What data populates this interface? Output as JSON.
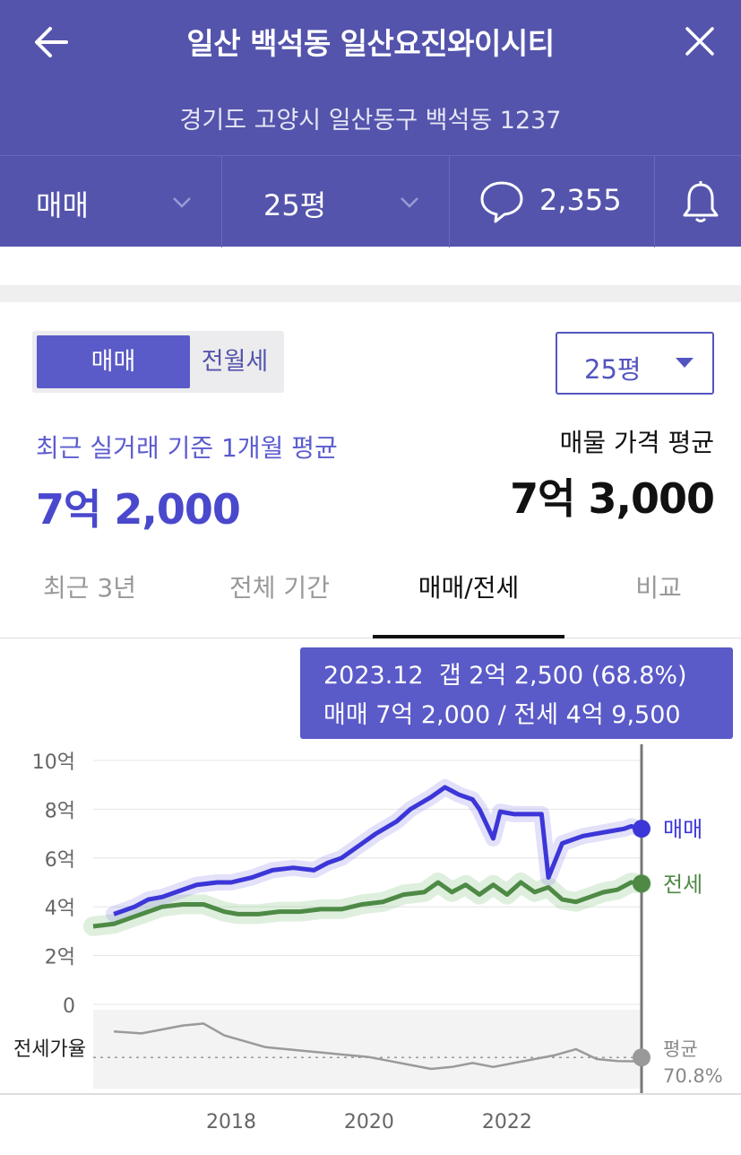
{
  "header": {
    "title": "일산 백석동 일산요진와이시티",
    "address": "경기도 고양시 일산동구 백석동 1237",
    "trade_type": "매매",
    "size": "25평",
    "comment_count": "2,355"
  },
  "segment": {
    "active": "매매",
    "inactive": "전월세"
  },
  "size_select": {
    "value": "25평"
  },
  "summary": {
    "recent_label": "최근 실거래 기준 1개월 평균",
    "recent_value": "7억 2,000",
    "listing_label": "매물 가격 평균",
    "listing_value": "7억 3,000"
  },
  "tabs": [
    {
      "label": "최근 3년",
      "active": false
    },
    {
      "label": "전체 기간",
      "active": false
    },
    {
      "label": "매매/전세",
      "active": true
    },
    {
      "label": "비교",
      "active": false
    }
  ],
  "tooltip": {
    "line1": "2023.12  갭 2억 2,500 (68.8%)",
    "line2": "매매 7억 2,000 / 전세 4억 9,500"
  },
  "colors": {
    "header_bg": "#5454ac",
    "accent": "#5a5ac8",
    "sale_line": "#3c36d8",
    "jeonse_line": "#4e8a46",
    "ratio_line": "#9a9a9a"
  },
  "chart_data": {
    "type": "line",
    "x_ticks": [
      "2018",
      "2020",
      "2022"
    ],
    "y_ticks": [
      "10억",
      "8억",
      "6억",
      "4억",
      "2억",
      "0"
    ],
    "ylim": [
      0,
      10
    ],
    "y_unit": "억",
    "series": [
      {
        "name": "매매",
        "x": [
          2016.3,
          2016.6,
          2016.8,
          2017.0,
          2017.2,
          2017.5,
          2017.8,
          2018.0,
          2018.3,
          2018.6,
          2018.9,
          2019.2,
          2019.4,
          2019.6,
          2019.9,
          2020.1,
          2020.4,
          2020.6,
          2020.9,
          2021.1,
          2021.3,
          2021.5,
          2021.6,
          2021.8,
          2021.9,
          2022.1,
          2022.3,
          2022.5,
          2022.6,
          2022.8,
          2022.9,
          2023.1,
          2023.3,
          2023.5,
          2023.7,
          2023.8,
          2023.95
        ],
        "values": [
          3.7,
          4.0,
          4.3,
          4.4,
          4.6,
          4.9,
          5.0,
          5.0,
          5.2,
          5.5,
          5.6,
          5.5,
          5.8,
          6.0,
          6.6,
          7.0,
          7.5,
          8.0,
          8.5,
          8.9,
          8.6,
          8.4,
          8.0,
          6.8,
          7.9,
          7.8,
          7.8,
          7.8,
          5.2,
          6.6,
          6.7,
          6.9,
          7.0,
          7.1,
          7.2,
          7.3,
          7.2
        ]
      },
      {
        "name": "전세",
        "x": [
          2016.0,
          2016.3,
          2016.6,
          2016.8,
          2017.0,
          2017.3,
          2017.6,
          2017.9,
          2018.1,
          2018.4,
          2018.7,
          2019.0,
          2019.3,
          2019.6,
          2019.9,
          2020.2,
          2020.5,
          2020.8,
          2021.0,
          2021.2,
          2021.4,
          2021.6,
          2021.8,
          2022.0,
          2022.2,
          2022.4,
          2022.6,
          2022.8,
          2023.0,
          2023.2,
          2023.4,
          2023.6,
          2023.8,
          2023.95
        ],
        "values": [
          3.2,
          3.3,
          3.6,
          3.8,
          4.0,
          4.1,
          4.1,
          3.8,
          3.7,
          3.7,
          3.8,
          3.8,
          3.9,
          3.9,
          4.1,
          4.2,
          4.5,
          4.6,
          5.0,
          4.6,
          4.9,
          4.5,
          4.9,
          4.5,
          5.0,
          4.6,
          4.8,
          4.3,
          4.2,
          4.4,
          4.6,
          4.7,
          5.0,
          4.95
        ]
      },
      {
        "name": "전세가율",
        "x": [
          2016.3,
          2016.7,
          2017.0,
          2017.3,
          2017.6,
          2017.9,
          2018.2,
          2018.5,
          2018.8,
          2019.1,
          2019.4,
          2019.7,
          2020.0,
          2020.3,
          2020.6,
          2020.9,
          2021.2,
          2021.5,
          2021.8,
          2022.1,
          2022.4,
          2022.7,
          2023.0,
          2023.3,
          2023.6,
          2023.95
        ],
        "values": [
          84,
          83,
          85,
          87,
          88,
          82,
          79,
          76,
          75,
          74,
          73,
          72,
          71,
          69,
          67,
          65,
          66,
          68,
          66,
          68,
          70,
          72,
          75,
          70,
          69,
          68.8
        ]
      }
    ],
    "series_labels": {
      "sale": "매매",
      "jeonse": "전세"
    },
    "ratio_label": "전세가율",
    "ratio_avg_label": "평균",
    "ratio_avg_value": "70.8%",
    "ratio_avg": 70.8,
    "selected_x": 2023.95
  }
}
